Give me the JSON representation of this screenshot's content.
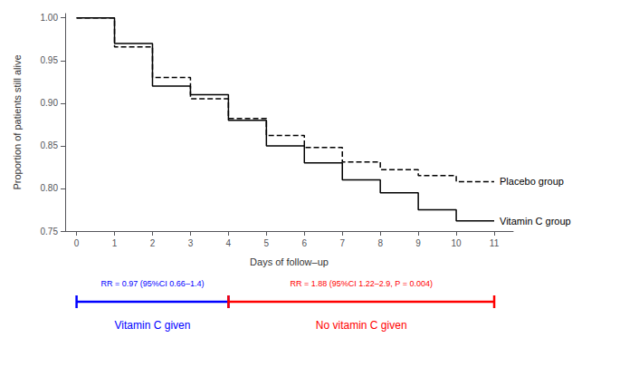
{
  "chart_data": {
    "type": "line",
    "xlabel": "Days of follow–up",
    "ylabel": "Proportion of patients still alive",
    "xlim": [
      -0.3,
      11.5
    ],
    "ylim": [
      0.75,
      1.005
    ],
    "xticks": [
      0,
      1,
      2,
      3,
      4,
      5,
      6,
      7,
      8,
      9,
      10,
      11
    ],
    "yticks": [
      0.75,
      {
        "value": 0.8,
        "label": "0.80"
      },
      0.85,
      {
        "value": 0.9,
        "label": "0.90"
      },
      0.95,
      {
        "value": 1.0,
        "label": "1.00"
      }
    ],
    "grid": false,
    "series": [
      {
        "name": "Vitamin C group",
        "color": "black",
        "line_style": "solid",
        "x": [
          0,
          1,
          1,
          2,
          2,
          3,
          3,
          4,
          4,
          5,
          5,
          6,
          6,
          7,
          7,
          8,
          8,
          9,
          9,
          10,
          10,
          11
        ],
        "values": [
          1.0,
          1.0,
          0.97,
          0.97,
          0.92,
          0.92,
          0.91,
          0.91,
          0.88,
          0.88,
          0.85,
          0.85,
          0.83,
          0.83,
          0.81,
          0.81,
          0.795,
          0.795,
          0.775,
          0.775,
          0.762,
          0.762
        ]
      },
      {
        "name": "Placebo group",
        "color": "black",
        "line_style": "dashed",
        "x": [
          0,
          1,
          1,
          2,
          2,
          3,
          3,
          4,
          4,
          5,
          5,
          6,
          6,
          7,
          7,
          8,
          8,
          9,
          9,
          10,
          10,
          11
        ],
        "values": [
          1.0,
          1.0,
          0.966,
          0.966,
          0.93,
          0.93,
          0.905,
          0.905,
          0.882,
          0.882,
          0.862,
          0.862,
          0.848,
          0.848,
          0.831,
          0.831,
          0.822,
          0.822,
          0.815,
          0.815,
          0.808,
          0.808
        ]
      }
    ],
    "annotations": [
      {
        "text": "RR = 0.97 (95%CI 0.66–1.4)",
        "label": "Vitamin C given",
        "color": "blue",
        "x": [
          0,
          4
        ]
      },
      {
        "text": "RR = 1.88 (95%CI 1.22–2.9, P = 0.004)",
        "label": "No vitamin C given",
        "color": "red",
        "x": [
          4,
          11
        ]
      }
    ]
  }
}
